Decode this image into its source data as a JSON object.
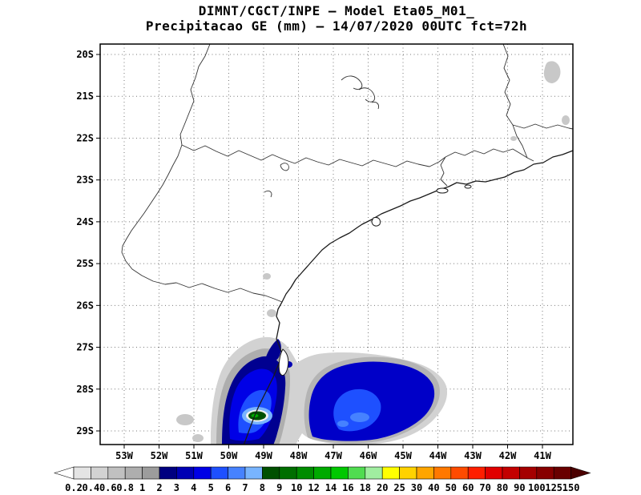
{
  "header": {
    "line1": "DIMNT/CGCT/INPE —  Model Eta05_M01_",
    "line2": "Precipitacao GE (mm) — 14/07/2020 00UTC fct=72h"
  },
  "chart_data": {
    "type": "heatmap",
    "title": "DIMNT/CGCT/INPE — Model Eta05_M01_",
    "subtitle": "Precipitacao GE (mm) — 14/07/2020 00UTC fct=72h",
    "institution": "DIMNT/CGCT/INPE",
    "model": "Eta05_M01_",
    "variable": "Precipitacao GE (mm)",
    "valid": "14/07/2020 00UTC",
    "forecast_hour": "fct=72h",
    "lat_ticks": [
      "20S",
      "21S",
      "22S",
      "23S",
      "24S",
      "25S",
      "26S",
      "27S",
      "28S",
      "29S"
    ],
    "lon_ticks": [
      "53W",
      "52W",
      "51W",
      "50W",
      "49W",
      "48W",
      "47W",
      "46W",
      "45W",
      "44W",
      "43W",
      "42W",
      "41W"
    ],
    "lat_range": [
      "19.7S",
      "29.4S"
    ],
    "lon_range": [
      "53.7W",
      "40.2W"
    ],
    "grid": "dotted",
    "legend_position": "bottom",
    "colorbar": {
      "labels": [
        "0.2",
        "0.4",
        "0.6",
        "0.8",
        "1",
        "2",
        "3",
        "4",
        "5",
        "6",
        "7",
        "8",
        "9",
        "10",
        "12",
        "14",
        "16",
        "18",
        "20",
        "25",
        "30",
        "40",
        "50",
        "60",
        "70",
        "80",
        "90",
        "100",
        "125",
        "150"
      ],
      "colors": [
        "#ffffff",
        "#e4e4e4",
        "#d2d2d2",
        "#c0c0c0",
        "#aeaeae",
        "#9c9c9c",
        "#000080",
        "#0000b4",
        "#0000e6",
        "#1e50ff",
        "#4682ff",
        "#78b4ff",
        "#005000",
        "#006e00",
        "#008c00",
        "#00aa00",
        "#00c800",
        "#50dc50",
        "#a0eea0",
        "#ffff00",
        "#ffd200",
        "#ffa500",
        "#ff7800",
        "#ff4b00",
        "#ff1e00",
        "#e10000",
        "#c30000",
        "#a50000",
        "#870000",
        "#690000",
        "#4b0000"
      ]
    },
    "precip_features": [
      {
        "region": "Coastal Santa Catarina and adjacent serra (49-50.5W, 27-29.3S)",
        "values_mm": "2-10",
        "core": "8-10 mm dark-green core near 49.3W, 28.7S"
      },
      {
        "region": "Atlantic Ocean offshore (44.5-48.5W, 27.8-29.3S)",
        "values_mm": "2-6",
        "core": "5-6 mm near 46.5W, 28.6S"
      },
      {
        "region": "Scattered weak spots (coast 26-27S, far south-west, upper-right near 41W 20-21S)",
        "values_mm": "0.2-1"
      }
    ]
  }
}
